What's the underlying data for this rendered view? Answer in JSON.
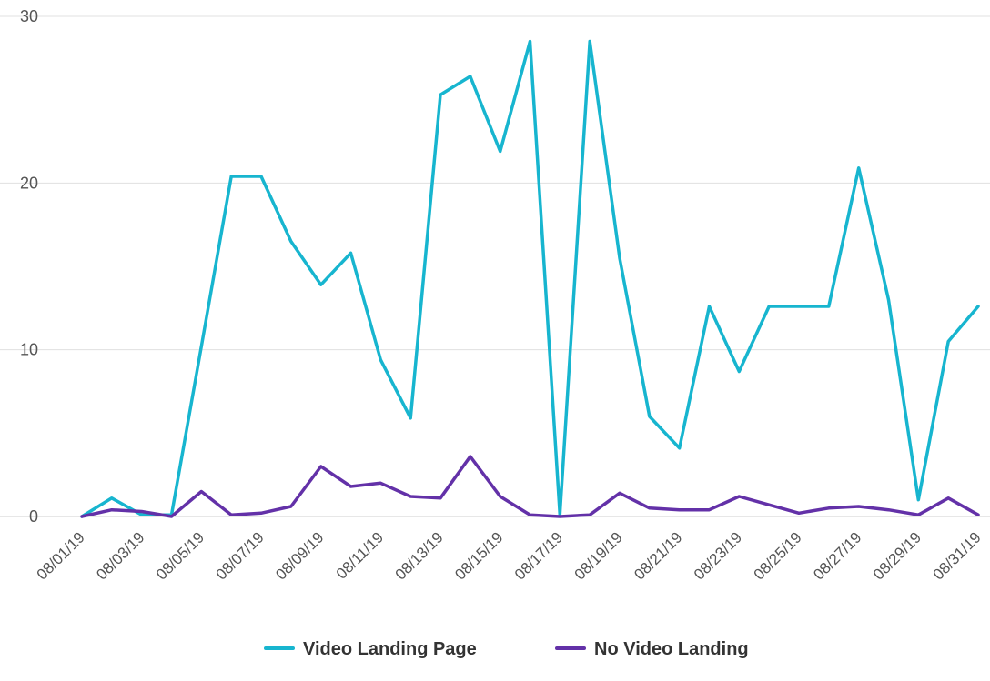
{
  "chart_data": {
    "type": "line",
    "x": [
      "08/01/19",
      "08/02/19",
      "08/03/19",
      "08/04/19",
      "08/05/19",
      "08/06/19",
      "08/07/19",
      "08/08/19",
      "08/09/19",
      "08/10/19",
      "08/11/19",
      "08/12/19",
      "08/13/19",
      "08/14/19",
      "08/15/19",
      "08/16/19",
      "08/17/19",
      "08/18/19",
      "08/19/19",
      "08/20/19",
      "08/21/19",
      "08/22/19",
      "08/23/19",
      "08/24/19",
      "08/25/19",
      "08/26/19",
      "08/27/19",
      "08/28/19",
      "08/29/19",
      "08/30/19",
      "08/31/19"
    ],
    "xtick_labels": [
      "08/01/19",
      "08/03/19",
      "08/05/19",
      "08/07/19",
      "08/09/19",
      "08/11/19",
      "08/13/19",
      "08/15/19",
      "08/17/19",
      "08/19/19",
      "08/21/19",
      "08/23/19",
      "08/25/19",
      "08/27/19",
      "08/29/19",
      "08/31/19"
    ],
    "yticks": [
      "0",
      "10",
      "20",
      "30"
    ],
    "ylim": [
      0,
      30
    ],
    "series": [
      {
        "name": "Video Landing Page",
        "color": "#17b5cf",
        "values": [
          0.0,
          1.1,
          0.1,
          0.1,
          10.2,
          20.4,
          20.4,
          16.5,
          13.9,
          15.8,
          9.4,
          5.9,
          25.3,
          26.4,
          21.9,
          28.5,
          0.1,
          28.5,
          15.5,
          6.0,
          4.1,
          12.6,
          8.7,
          12.6,
          12.6,
          12.6,
          20.9,
          13.0,
          1.0,
          10.5,
          12.6
        ]
      },
      {
        "name": "No Video Landing",
        "color": "#6331a8",
        "values": [
          0.0,
          0.4,
          0.3,
          0.0,
          1.5,
          0.1,
          0.2,
          0.6,
          3.0,
          1.8,
          2.0,
          1.2,
          1.1,
          3.6,
          1.2,
          0.1,
          0.0,
          0.1,
          1.4,
          0.5,
          0.4,
          0.4,
          1.2,
          0.7,
          0.2,
          0.5,
          0.6,
          0.4,
          0.1,
          1.1,
          0.1
        ]
      }
    ],
    "grid": true,
    "legend_position": "bottom-center"
  }
}
